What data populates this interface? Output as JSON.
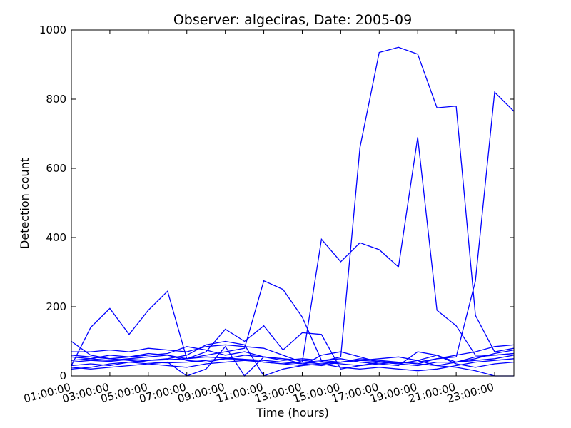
{
  "chart_data": {
    "type": "line",
    "title": "Observer: algeciras, Date: 2005-09",
    "xlabel": "Time (hours)",
    "ylabel": "Detection count",
    "x": [
      1,
      2,
      3,
      4,
      5,
      6,
      7,
      8,
      9,
      10,
      11,
      12,
      13,
      14,
      15,
      16,
      17,
      18,
      19,
      20,
      21,
      22,
      23,
      24
    ],
    "xlim": [
      1,
      24
    ],
    "ylim": [
      0,
      1000
    ],
    "xticks": [
      1,
      3,
      5,
      7,
      9,
      11,
      13,
      15,
      17,
      19,
      21,
      23
    ],
    "xtick_labels": [
      "01:00:00",
      "03:00:00",
      "05:00:00",
      "07:00:00",
      "09:00:00",
      "11:00:00",
      "13:00:00",
      "15:00:00",
      "17:00:00",
      "19:00:00",
      "21:00:00",
      "23:00:00"
    ],
    "yticks": [
      0,
      200,
      400,
      600,
      800,
      1000
    ],
    "ytick_labels": [
      "0",
      "200",
      "400",
      "600",
      "800",
      "1000"
    ],
    "line_color": "#0000ff",
    "grid": false,
    "series": [
      {
        "values": [
          60,
          55,
          50,
          45,
          40,
          38,
          40,
          45,
          50,
          48,
          45,
          40,
          35,
          42,
          55,
          660,
          935,
          950,
          930,
          775,
          780,
          175,
          70,
          80
        ]
      },
      {
        "values": [
          40,
          45,
          42,
          48,
          45,
          47,
          50,
          55,
          52,
          48,
          40,
          35,
          40,
          395,
          330,
          385,
          365,
          315,
          690,
          190,
          145,
          60,
          60,
          65
        ]
      },
      {
        "values": [
          30,
          140,
          195,
          120,
          190,
          245,
          50,
          60,
          70,
          80,
          275,
          250,
          170,
          45,
          40,
          45,
          42,
          38,
          40,
          50,
          55,
          275,
          820,
          765
        ]
      },
      {
        "values": [
          100,
          60,
          50,
          55,
          65,
          60,
          50,
          70,
          135,
          100,
          145,
          75,
          125,
          120,
          20,
          30,
          40,
          35,
          30,
          40,
          40,
          50,
          65,
          75
        ]
      },
      {
        "values": [
          20,
          25,
          35,
          40,
          45,
          50,
          60,
          90,
          100,
          90,
          0,
          20,
          30,
          60,
          70,
          55,
          40,
          35,
          45,
          60,
          40,
          45,
          50,
          60
        ]
      },
      {
        "values": [
          70,
          70,
          75,
          70,
          80,
          75,
          70,
          85,
          90,
          85,
          80,
          60,
          40,
          35,
          40,
          50,
          45,
          40,
          35,
          50,
          60,
          70,
          85,
          90
        ]
      },
      {
        "values": [
          45,
          50,
          60,
          55,
          60,
          65,
          85,
          75,
          60,
          70,
          55,
          45,
          50,
          45,
          50,
          40,
          35,
          30,
          70,
          60,
          35,
          25,
          35,
          40
        ]
      },
      {
        "values": [
          30,
          35,
          30,
          40,
          35,
          40,
          0,
          20,
          85,
          0,
          55,
          50,
          35,
          30,
          40,
          45,
          50,
          55,
          45,
          30,
          25,
          15,
          0,
          0
        ]
      },
      {
        "values": [
          55,
          50,
          45,
          50,
          55,
          60,
          45,
          40,
          50,
          60,
          55,
          50,
          45,
          40,
          35,
          30,
          35,
          40,
          35,
          30,
          40,
          55,
          60,
          65
        ]
      },
      {
        "values": [
          25,
          20,
          25,
          30,
          35,
          30,
          25,
          35,
          40,
          45,
          40,
          35,
          30,
          35,
          25,
          20,
          25,
          20,
          15,
          20,
          30,
          40,
          45,
          50
        ]
      }
    ]
  }
}
